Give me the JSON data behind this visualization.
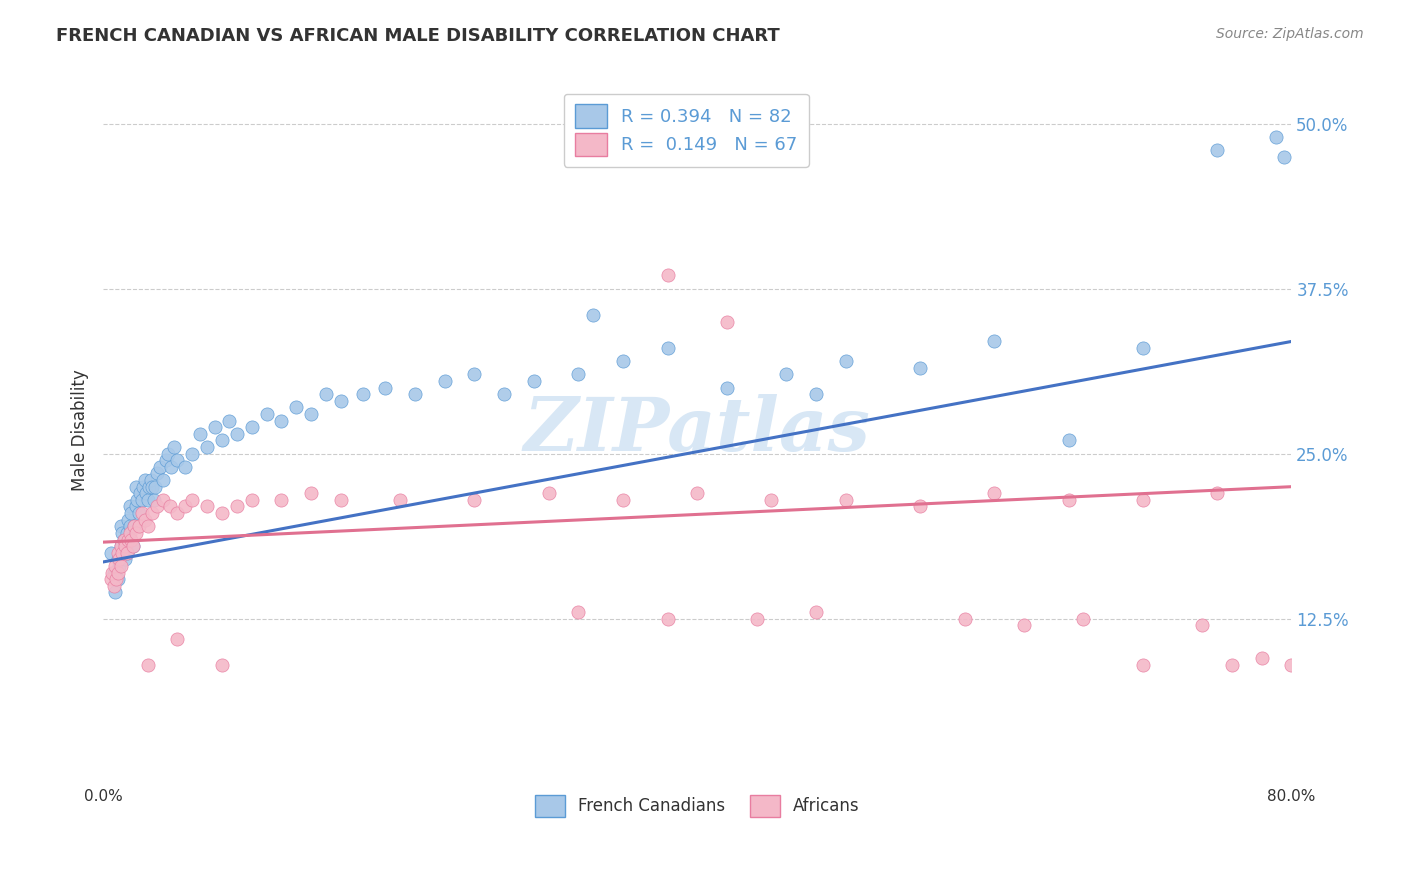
{
  "title": "FRENCH CANADIAN VS AFRICAN MALE DISABILITY CORRELATION CHART",
  "source": "Source: ZipAtlas.com",
  "ylabel_label": "Male Disability",
  "yticks": [
    0.125,
    0.25,
    0.375,
    0.5
  ],
  "ytick_labels": [
    "12.5%",
    "25.0%",
    "37.5%",
    "50.0%"
  ],
  "xmin": 0.0,
  "xmax": 0.8,
  "ymin": 0.0,
  "ymax": 0.535,
  "blue_color": "#a8c8e8",
  "blue_edge_color": "#5b9bd5",
  "blue_line_color": "#4472c4",
  "pink_color": "#f4b8c8",
  "pink_edge_color": "#e87da0",
  "pink_line_color": "#e07090",
  "legend_blue_label": "R = 0.394   N = 82",
  "legend_pink_label": "R =  0.149   N = 67",
  "bottom_legend_blue": "French Canadians",
  "bottom_legend_pink": "Africans",
  "watermark": "ZIPatlas",
  "blue_x": [
    0.005,
    0.007,
    0.008,
    0.01,
    0.01,
    0.011,
    0.012,
    0.012,
    0.013,
    0.013,
    0.014,
    0.015,
    0.015,
    0.016,
    0.016,
    0.017,
    0.017,
    0.018,
    0.018,
    0.019,
    0.02,
    0.021,
    0.022,
    0.022,
    0.023,
    0.024,
    0.025,
    0.026,
    0.027,
    0.028,
    0.029,
    0.03,
    0.031,
    0.032,
    0.033,
    0.034,
    0.035,
    0.036,
    0.038,
    0.04,
    0.042,
    0.044,
    0.046,
    0.048,
    0.05,
    0.055,
    0.06,
    0.065,
    0.07,
    0.075,
    0.08,
    0.085,
    0.09,
    0.1,
    0.11,
    0.12,
    0.13,
    0.14,
    0.15,
    0.16,
    0.175,
    0.19,
    0.21,
    0.23,
    0.25,
    0.27,
    0.29,
    0.32,
    0.35,
    0.38,
    0.42,
    0.46,
    0.5,
    0.55,
    0.6,
    0.65,
    0.7,
    0.75,
    0.79,
    0.795,
    0.33,
    0.48
  ],
  "blue_y": [
    0.175,
    0.16,
    0.145,
    0.155,
    0.17,
    0.165,
    0.18,
    0.195,
    0.175,
    0.19,
    0.185,
    0.17,
    0.185,
    0.175,
    0.19,
    0.185,
    0.2,
    0.195,
    0.21,
    0.205,
    0.18,
    0.195,
    0.21,
    0.225,
    0.215,
    0.205,
    0.22,
    0.215,
    0.225,
    0.23,
    0.22,
    0.215,
    0.225,
    0.23,
    0.225,
    0.215,
    0.225,
    0.235,
    0.24,
    0.23,
    0.245,
    0.25,
    0.24,
    0.255,
    0.245,
    0.24,
    0.25,
    0.265,
    0.255,
    0.27,
    0.26,
    0.275,
    0.265,
    0.27,
    0.28,
    0.275,
    0.285,
    0.28,
    0.295,
    0.29,
    0.295,
    0.3,
    0.295,
    0.305,
    0.31,
    0.295,
    0.305,
    0.31,
    0.32,
    0.33,
    0.3,
    0.31,
    0.32,
    0.315,
    0.335,
    0.26,
    0.33,
    0.48,
    0.49,
    0.475,
    0.355,
    0.295
  ],
  "pink_x": [
    0.005,
    0.006,
    0.007,
    0.008,
    0.009,
    0.01,
    0.01,
    0.011,
    0.012,
    0.012,
    0.013,
    0.014,
    0.015,
    0.016,
    0.017,
    0.018,
    0.019,
    0.02,
    0.021,
    0.022,
    0.024,
    0.026,
    0.028,
    0.03,
    0.033,
    0.036,
    0.04,
    0.045,
    0.05,
    0.055,
    0.06,
    0.07,
    0.08,
    0.09,
    0.1,
    0.12,
    0.14,
    0.16,
    0.2,
    0.25,
    0.3,
    0.35,
    0.4,
    0.45,
    0.5,
    0.55,
    0.6,
    0.65,
    0.7,
    0.75,
    0.32,
    0.38,
    0.44,
    0.48,
    0.03,
    0.05,
    0.08,
    0.58,
    0.62,
    0.66,
    0.7,
    0.74,
    0.76,
    0.78,
    0.8,
    0.38,
    0.42
  ],
  "pink_y": [
    0.155,
    0.16,
    0.15,
    0.165,
    0.155,
    0.16,
    0.175,
    0.17,
    0.165,
    0.18,
    0.175,
    0.185,
    0.18,
    0.175,
    0.185,
    0.19,
    0.185,
    0.18,
    0.195,
    0.19,
    0.195,
    0.205,
    0.2,
    0.195,
    0.205,
    0.21,
    0.215,
    0.21,
    0.205,
    0.21,
    0.215,
    0.21,
    0.205,
    0.21,
    0.215,
    0.215,
    0.22,
    0.215,
    0.215,
    0.215,
    0.22,
    0.215,
    0.22,
    0.215,
    0.215,
    0.21,
    0.22,
    0.215,
    0.215,
    0.22,
    0.13,
    0.125,
    0.125,
    0.13,
    0.09,
    0.11,
    0.09,
    0.125,
    0.12,
    0.125,
    0.09,
    0.12,
    0.09,
    0.095,
    0.09,
    0.385,
    0.35
  ],
  "blue_trend_x0": 0.0,
  "blue_trend_y0": 0.168,
  "blue_trend_x1": 0.8,
  "blue_trend_y1": 0.335,
  "pink_trend_x0": 0.0,
  "pink_trend_y0": 0.183,
  "pink_trend_x1": 0.8,
  "pink_trend_y1": 0.225
}
